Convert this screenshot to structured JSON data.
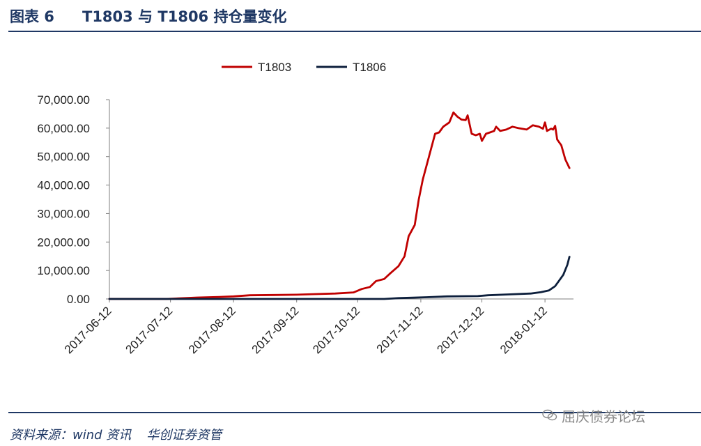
{
  "figure": {
    "label": "图表 6",
    "title": "T1803 与 T1806 持仓量变化"
  },
  "source": {
    "prefix": "资料来源：wind 资讯",
    "org": "华创证券资管"
  },
  "watermark": {
    "icon": "wechat-icon",
    "text": "屈庆债券论坛"
  },
  "colors": {
    "title": "#1f3864",
    "T1803": "#c00000",
    "T1806": "#0d1f3c",
    "axis": "#7f7f7f"
  },
  "chart_data": {
    "type": "line",
    "title": "",
    "xlabel": "",
    "ylabel": "",
    "ylim": [
      0,
      70000
    ],
    "yticks": [
      "0.00",
      "10,000.00",
      "20,000.00",
      "30,000.00",
      "40,000.00",
      "50,000.00",
      "60,000.00",
      "70,000.00"
    ],
    "xlim": [
      "2017-06-12",
      "2018-01-26"
    ],
    "xticks": [
      "2017-06-12",
      "2017-07-12",
      "2017-08-12",
      "2017-09-12",
      "2017-10-12",
      "2017-11-12",
      "2017-12-12",
      "2018-01-12"
    ],
    "grid": false,
    "legend": "top",
    "series": [
      {
        "name": "T1803",
        "points": [
          [
            "2017-06-12",
            0
          ],
          [
            "2017-07-10",
            0
          ],
          [
            "2017-07-25",
            500
          ],
          [
            "2017-08-05",
            700
          ],
          [
            "2017-08-12",
            900
          ],
          [
            "2017-08-20",
            1300
          ],
          [
            "2017-09-01",
            1400
          ],
          [
            "2017-09-12",
            1500
          ],
          [
            "2017-09-20",
            1700
          ],
          [
            "2017-10-01",
            1900
          ],
          [
            "2017-10-10",
            2300
          ],
          [
            "2017-10-14",
            3500
          ],
          [
            "2017-10-18",
            4200
          ],
          [
            "2017-10-21",
            6300
          ],
          [
            "2017-10-25",
            7000
          ],
          [
            "2017-10-28",
            9000
          ],
          [
            "2017-11-01",
            11500
          ],
          [
            "2017-11-04",
            15000
          ],
          [
            "2017-11-06",
            22000
          ],
          [
            "2017-11-09",
            26000
          ],
          [
            "2017-11-11",
            35000
          ],
          [
            "2017-11-13",
            42000
          ],
          [
            "2017-11-16",
            50000
          ],
          [
            "2017-11-19",
            58000
          ],
          [
            "2017-11-21",
            58500
          ],
          [
            "2017-11-23",
            60500
          ],
          [
            "2017-11-26",
            62000
          ],
          [
            "2017-11-28",
            65500
          ],
          [
            "2017-11-30",
            64000
          ],
          [
            "2017-12-02",
            63000
          ],
          [
            "2017-12-04",
            62800
          ],
          [
            "2017-12-05",
            64500
          ],
          [
            "2017-12-07",
            58000
          ],
          [
            "2017-12-09",
            57500
          ],
          [
            "2017-12-11",
            58000
          ],
          [
            "2017-12-12",
            55500
          ],
          [
            "2017-12-14",
            58000
          ],
          [
            "2017-12-16",
            58500
          ],
          [
            "2017-12-18",
            59000
          ],
          [
            "2017-12-19",
            60500
          ],
          [
            "2017-12-21",
            59000
          ],
          [
            "2017-12-24",
            59500
          ],
          [
            "2017-12-27",
            60500
          ],
          [
            "2017-12-30",
            60000
          ],
          [
            "2018-01-03",
            59500
          ],
          [
            "2018-01-06",
            61000
          ],
          [
            "2018-01-09",
            60500
          ],
          [
            "2018-01-11",
            59800
          ],
          [
            "2018-01-12",
            62000
          ],
          [
            "2018-01-13",
            59000
          ],
          [
            "2018-01-15",
            59800
          ],
          [
            "2018-01-16",
            59500
          ],
          [
            "2018-01-17",
            60800
          ],
          [
            "2018-01-18",
            56000
          ],
          [
            "2018-01-20",
            54000
          ],
          [
            "2018-01-22",
            49000
          ],
          [
            "2018-01-24",
            46000
          ]
        ]
      },
      {
        "name": "T1806",
        "points": [
          [
            "2017-06-12",
            0
          ],
          [
            "2017-10-25",
            0
          ],
          [
            "2017-11-01",
            300
          ],
          [
            "2017-11-15",
            600
          ],
          [
            "2017-11-25",
            900
          ],
          [
            "2017-12-10",
            1000
          ],
          [
            "2017-12-15",
            1300
          ],
          [
            "2017-12-25",
            1600
          ],
          [
            "2018-01-05",
            1900
          ],
          [
            "2018-01-10",
            2400
          ],
          [
            "2018-01-14",
            3000
          ],
          [
            "2018-01-17",
            4500
          ],
          [
            "2018-01-19",
            6500
          ],
          [
            "2018-01-21",
            8500
          ],
          [
            "2018-01-23",
            12000
          ],
          [
            "2018-01-24",
            14800
          ]
        ]
      }
    ]
  }
}
